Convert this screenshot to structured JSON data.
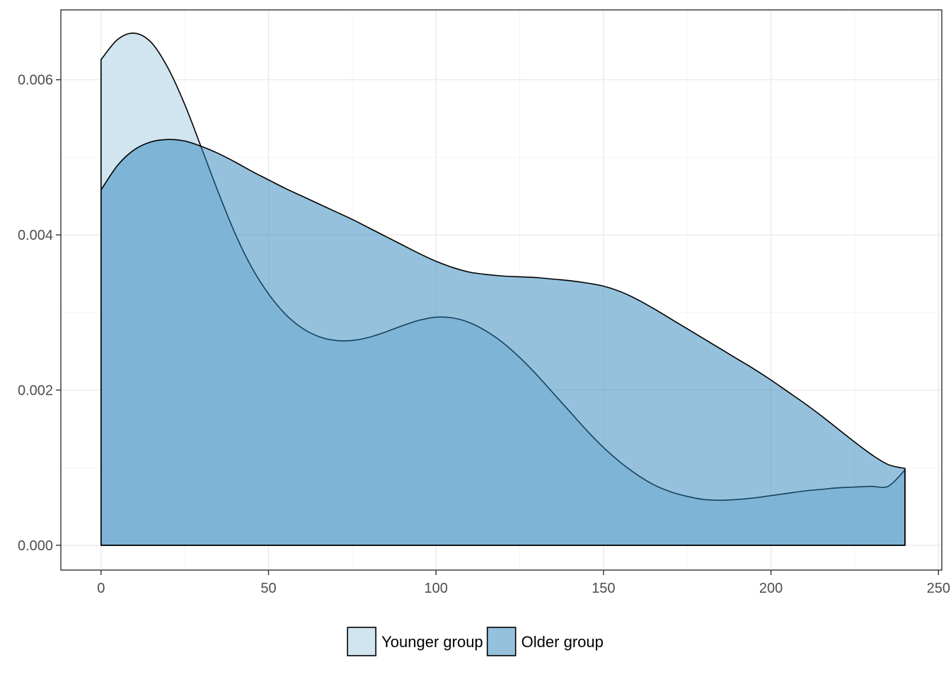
{
  "chart_data": {
    "type": "area",
    "title": "",
    "xlabel": "",
    "ylabel": "",
    "xlim": [
      -12,
      251
    ],
    "ylim": [
      -0.00032,
      0.0069
    ],
    "x_major_ticks": [
      0,
      50,
      100,
      150,
      200,
      250
    ],
    "x_minor_ticks": [
      25,
      75,
      125,
      175,
      225
    ],
    "y_major_ticks": [
      0.0,
      0.002,
      0.004,
      0.006
    ],
    "y_minor_ticks": [
      0.001,
      0.003,
      0.005
    ],
    "x_tick_labels": [
      "0",
      "50",
      "100",
      "150",
      "200",
      "250"
    ],
    "y_tick_labels": [
      "0.000",
      "0.002",
      "0.004",
      "0.006"
    ],
    "grid": true,
    "legend_position": "bottom",
    "series": [
      {
        "name": "Younger group",
        "color": "#d1e5f0",
        "opacity": 1,
        "x": [
          0,
          5,
          10,
          15,
          20,
          25,
          30,
          35,
          40,
          45,
          50,
          55,
          60,
          65,
          70,
          75,
          80,
          85,
          90,
          95,
          100,
          105,
          110,
          115,
          120,
          125,
          130,
          135,
          140,
          145,
          150,
          155,
          160,
          165,
          170,
          175,
          180,
          185,
          190,
          195,
          200,
          205,
          210,
          215,
          220,
          225,
          230,
          235,
          240
        ],
        "y": [
          0.00626,
          0.00652,
          0.0066,
          0.00648,
          0.00615,
          0.00568,
          0.00512,
          0.00455,
          0.00402,
          0.00358,
          0.00324,
          0.00298,
          0.0028,
          0.00269,
          0.00264,
          0.00264,
          0.00268,
          0.00275,
          0.00283,
          0.0029,
          0.00294,
          0.00293,
          0.00287,
          0.00276,
          0.00261,
          0.00242,
          0.0022,
          0.00196,
          0.00172,
          0.00148,
          0.00126,
          0.00107,
          0.00091,
          0.00078,
          0.00069,
          0.00063,
          0.00059,
          0.00058,
          0.00059,
          0.00061,
          0.00064,
          0.00067,
          0.0007,
          0.00072,
          0.00074,
          0.00075,
          0.00076,
          0.00076,
          0.00097
        ]
      },
      {
        "name": "Older group",
        "color": "#2b83ba",
        "opacity": 0.5,
        "x": [
          0,
          5,
          10,
          15,
          20,
          25,
          30,
          35,
          40,
          45,
          50,
          55,
          60,
          65,
          70,
          75,
          80,
          85,
          90,
          95,
          100,
          105,
          110,
          115,
          120,
          125,
          130,
          135,
          140,
          145,
          150,
          155,
          160,
          165,
          170,
          175,
          180,
          185,
          190,
          195,
          200,
          205,
          210,
          215,
          220,
          225,
          230,
          235,
          240
        ],
        "y": [
          0.00458,
          0.0049,
          0.0051,
          0.0052,
          0.00523,
          0.00521,
          0.00514,
          0.00505,
          0.00494,
          0.00482,
          0.00471,
          0.0046,
          0.0045,
          0.0044,
          0.0043,
          0.0042,
          0.00409,
          0.00398,
          0.00387,
          0.00376,
          0.00366,
          0.00358,
          0.00352,
          0.00349,
          0.00347,
          0.00346,
          0.00345,
          0.00343,
          0.00341,
          0.00338,
          0.00334,
          0.00327,
          0.00317,
          0.00305,
          0.00292,
          0.00279,
          0.00266,
          0.00253,
          0.0024,
          0.00227,
          0.00213,
          0.00198,
          0.00183,
          0.00167,
          0.0015,
          0.00133,
          0.00117,
          0.00104,
          0.00099
        ]
      }
    ]
  }
}
